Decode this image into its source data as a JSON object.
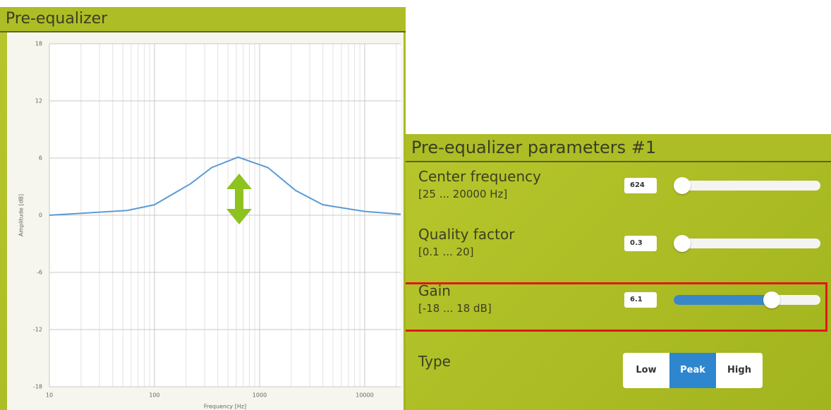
{
  "chart_data": {
    "type": "line",
    "title": "Pre-equalizer",
    "y_label": "Amplitude [dB]",
    "x_label": "Frequency [Hz]",
    "log_x": true,
    "grid": true,
    "color": "#5b9bd5",
    "x": [
      10,
      55,
      100,
      220,
      350,
      624,
      1200,
      2200,
      4000,
      10000,
      22000
    ],
    "values": [
      0,
      0.5,
      1.1,
      3.3,
      5.0,
      6.1,
      5.0,
      2.6,
      1.1,
      0.4,
      0.1
    ],
    "xlim": [
      10,
      22000
    ],
    "xticks": [
      10,
      100,
      1000,
      10000
    ],
    "xminor": [
      20,
      30,
      40,
      50,
      60,
      70,
      80,
      90,
      200,
      300,
      400,
      500,
      600,
      700,
      800,
      900,
      2000,
      3000,
      4000,
      5000,
      6000,
      7000,
      8000,
      9000,
      20000
    ],
    "ylim": [
      -18,
      18
    ],
    "yticks": [
      -18,
      -12,
      -6,
      0,
      6,
      12,
      18
    ]
  },
  "panel": {
    "title": "Pre-equalizer parameters #1",
    "controls": [
      {
        "label": "Center frequency",
        "range_label": "[25 ... 20000 Hz]",
        "min": 25,
        "max": 20000,
        "value": 624,
        "highlighted": false
      },
      {
        "label": "Quality factor",
        "range_label": "[0.1 ... 20]",
        "min": 0.1,
        "max": 20,
        "value": 0.3,
        "highlighted": false
      },
      {
        "label": "Gain",
        "range_label": "[-18 ... 18 dB]",
        "min": -18,
        "max": 18,
        "value": 6.1,
        "highlighted": true
      }
    ],
    "type_label": "Type",
    "type_options": [
      "Low",
      "Peak",
      "High"
    ],
    "type_selected": 1
  }
}
